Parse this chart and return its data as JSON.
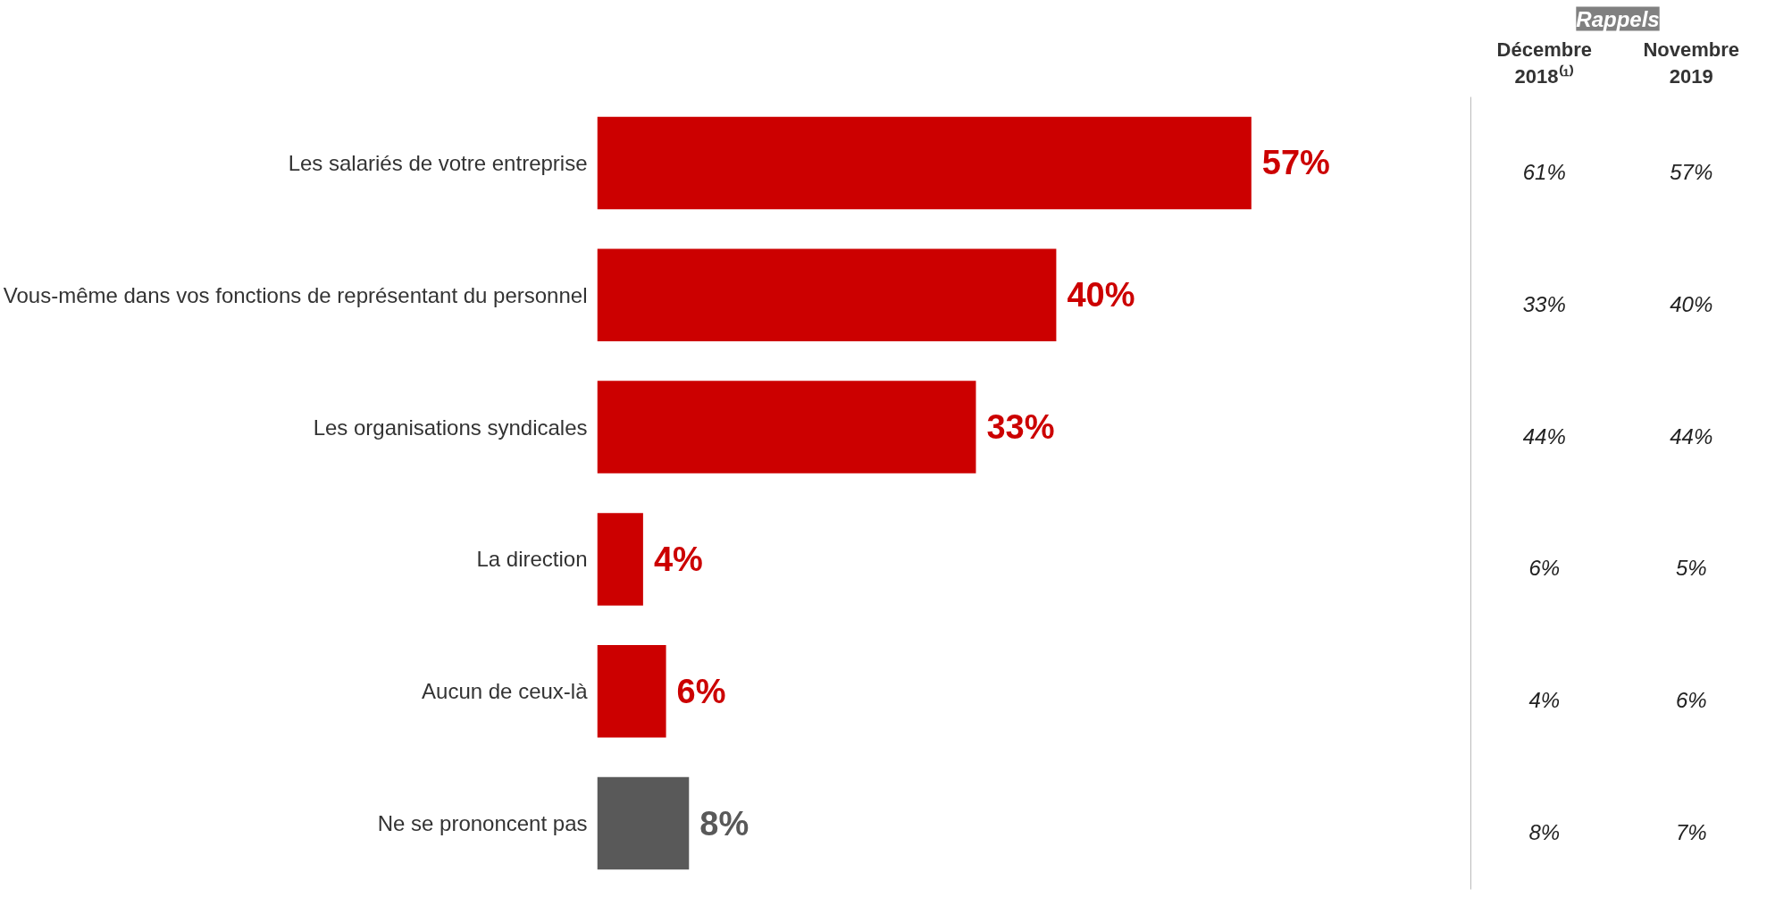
{
  "chart_data": [
    {
      "type": "bar",
      "orientation": "horizontal",
      "categories": [
        "Les salariés de votre entreprise",
        "Vous-même dans vos fonctions de représentant du personnel",
        "Les organisations syndicales",
        "La direction",
        "Aucun de ceux-là",
        "Ne se prononcent pas"
      ],
      "values": [
        57,
        40,
        33,
        4,
        6,
        8
      ],
      "colors": [
        "#cc0000",
        "#cc0000",
        "#cc0000",
        "#cc0000",
        "#cc0000",
        "#595959"
      ],
      "value_labels": [
        "57%",
        "40%",
        "33%",
        "4%",
        "6%",
        "8%"
      ],
      "tick_labels": "y",
      "grid": false
    },
    {
      "type": "other",
      "title": "Rappels",
      "categories": [
        "Décembre 2018⁽¹⁾",
        "Novembre 2019"
      ],
      "annotations": [
        "61%",
        "57%",
        "33%",
        "40%",
        "44%",
        "44%",
        "6%",
        "5%",
        "4%",
        "6%",
        "8%",
        "7%"
      ]
    }
  ]
}
